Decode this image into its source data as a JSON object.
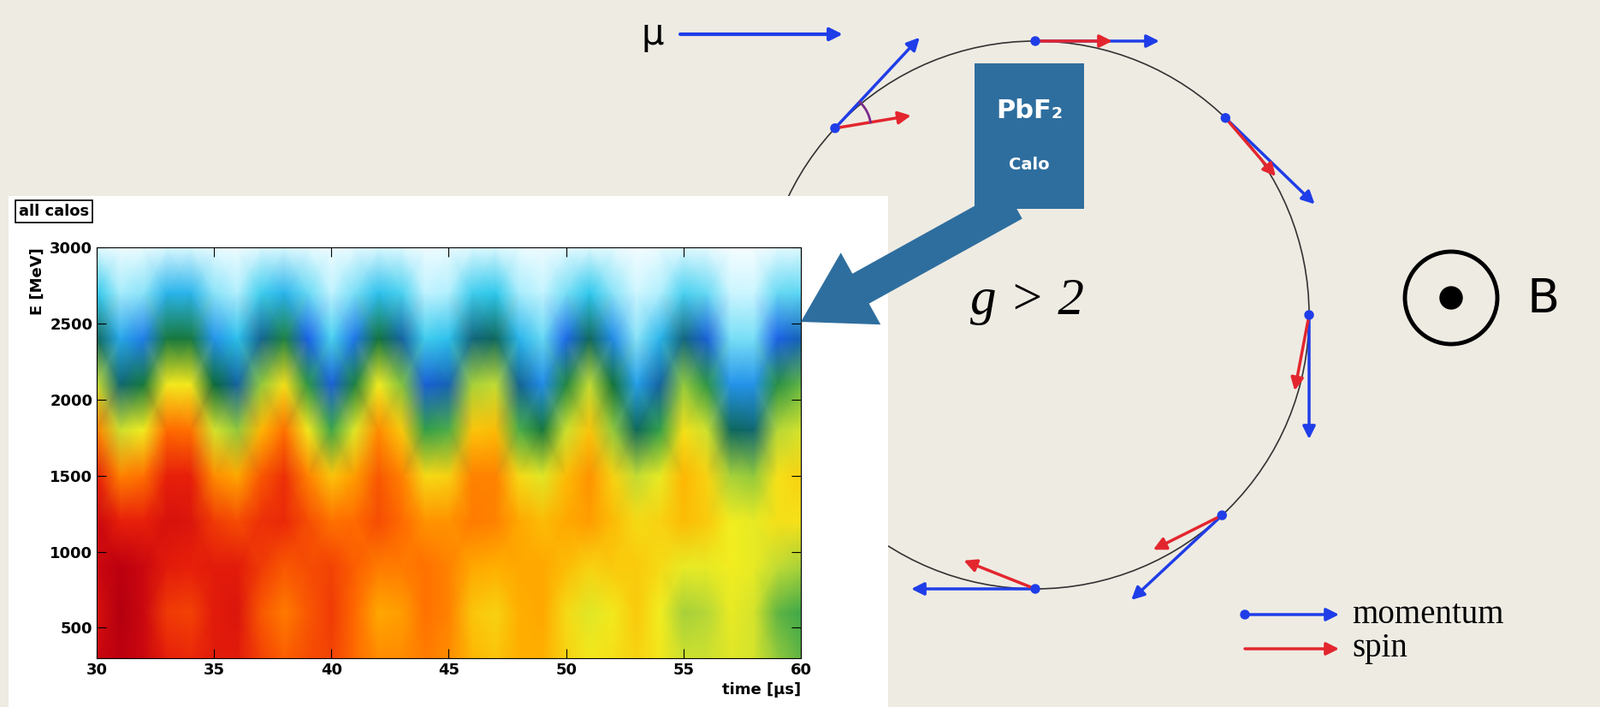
{
  "diagram": {
    "particle_label": "μ",
    "detector": {
      "label": "PbF₂",
      "sublabel": "Calo"
    },
    "condition": "g > 2",
    "field_label": "B",
    "legend": [
      {
        "label": "momentum",
        "color": "#1f3de8"
      },
      {
        "label": "spin",
        "color": "#e3262e"
      }
    ]
  },
  "chart_data": {
    "type": "heatmap",
    "title": "all calos",
    "xlabel": "time [µs]",
    "ylabel": "E [MeV]",
    "x": [
      30,
      31,
      32,
      33,
      34,
      35,
      36,
      37,
      38,
      39,
      40,
      41,
      42,
      43,
      44,
      45,
      46,
      47,
      48,
      49,
      50,
      51,
      52,
      53,
      54,
      55,
      56,
      57,
      58,
      59,
      60
    ],
    "y": [
      300,
      600,
      900,
      1200,
      1500,
      1800,
      2100,
      2400,
      2700,
      3000
    ],
    "cells": [
      [
        9.3,
        9.5,
        9.3,
        8.8,
        8.7,
        8.9,
        8.9,
        8.4,
        8.1,
        8.3,
        8.4,
        8.0,
        7.6,
        7.6,
        7.8,
        7.6,
        7.1,
        6.9,
        7.2,
        7.2,
        6.7,
        6.4,
        6.5,
        6.7,
        6.4,
        5.9,
        5.9,
        6.1,
        6.0,
        5.5,
        5.2
      ],
      [
        9.1,
        9.6,
        9.3,
        8.5,
        8.4,
        8.9,
        9.0,
        8.2,
        7.8,
        8.2,
        8.5,
        8.0,
        7.3,
        7.4,
        7.9,
        7.7,
        6.9,
        6.7,
        7.2,
        7.3,
        6.6,
        6.1,
        6.4,
        6.8,
        6.3,
        5.6,
        5.7,
        6.2,
        6.0,
        5.2,
        5.0
      ],
      [
        9.3,
        9.5,
        9.3,
        8.9,
        8.8,
        8.9,
        8.9,
        8.5,
        8.2,
        8.3,
        8.4,
        8.1,
        7.8,
        7.8,
        7.9,
        7.7,
        7.3,
        7.2,
        7.3,
        7.3,
        7.0,
        6.7,
        6.8,
        6.8,
        6.6,
        6.2,
        6.2,
        6.3,
        6.2,
        5.8,
        5.6
      ],
      [
        9.3,
        8.8,
        8.8,
        9.1,
        9.0,
        8.5,
        8.3,
        8.6,
        8.7,
        8.3,
        7.9,
        8.0,
        8.3,
        8.0,
        7.5,
        7.5,
        7.8,
        7.7,
        7.3,
        7.0,
        7.3,
        7.4,
        7.0,
        6.6,
        6.7,
        7.0,
        6.8,
        6.3,
        6.2,
        6.5,
        6.5
      ],
      [
        8.8,
        7.7,
        7.9,
        8.8,
        8.8,
        7.6,
        7.3,
        8.2,
        8.6,
        7.7,
        6.9,
        7.4,
        8.2,
        7.7,
        6.6,
        6.7,
        7.7,
        7.7,
        6.6,
        6.1,
        7.0,
        7.5,
        6.7,
        5.8,
        6.2,
        7.1,
        6.7,
        5.6,
        5.5,
        6.5,
        6.7
      ],
      [
        7.7,
        5.9,
        6.3,
        8.0,
        7.9,
        6.0,
        5.5,
        7.1,
        7.9,
        6.4,
        5.0,
        6.1,
        7.6,
        6.8,
        4.9,
        5.1,
        6.9,
        7.0,
        5.1,
        4.4,
        5.9,
        6.9,
        5.5,
        4.0,
        4.9,
        6.5,
        5.9,
        4.0,
        3.9,
        5.7,
        6.0
      ],
      [
        5.9,
        3.9,
        4.4,
        6.4,
        6.4,
        4.2,
        3.6,
        5.5,
        6.5,
        4.8,
        3.3,
        4.5,
        6.3,
        5.4,
        3.3,
        3.5,
        5.6,
        5.8,
        3.7,
        2.8,
        4.6,
        5.8,
        4.3,
        2.6,
        3.6,
        5.5,
        4.8,
        2.7,
        2.7,
        4.7,
        5.2
      ],
      [
        4.0,
        2.5,
        2.9,
        4.4,
        4.4,
        2.7,
        2.3,
        3.7,
        4.5,
        3.2,
        2.0,
        3.0,
        4.3,
        3.6,
        2.1,
        2.3,
        3.8,
        4.0,
        2.4,
        1.8,
        3.1,
        4.0,
        2.8,
        1.6,
        2.4,
        3.8,
        3.3,
        1.7,
        1.7,
        3.2,
        3.5
      ],
      [
        2.2,
        1.4,
        1.6,
        2.4,
        2.4,
        1.6,
        1.3,
        2.1,
        2.4,
        1.8,
        1.2,
        1.7,
        2.3,
        2.0,
        1.2,
        1.3,
        2.1,
        2.2,
        1.4,
        1.1,
        1.7,
        2.2,
        1.6,
        0.9,
        1.3,
        2.0,
        1.8,
        1.0,
        1.0,
        1.8,
        1.9
      ],
      [
        0.6,
        0.3,
        0.4,
        0.7,
        0.7,
        0.4,
        0.3,
        0.6,
        0.7,
        0.5,
        0.3,
        0.5,
        0.7,
        0.6,
        0.3,
        0.4,
        0.6,
        0.7,
        0.4,
        0.3,
        0.5,
        0.6,
        0.5,
        0.2,
        0.4,
        0.6,
        0.5,
        0.2,
        0.2,
        0.5,
        0.6
      ]
    ],
    "zlim": [
      0,
      10
    ],
    "xlim": [
      30,
      60
    ],
    "ylim": [
      300,
      3000
    ],
    "xticks": [
      30,
      35,
      40,
      45,
      50,
      55,
      60
    ],
    "yticks": [
      500,
      1000,
      1500,
      2000,
      2500,
      3000
    ]
  }
}
